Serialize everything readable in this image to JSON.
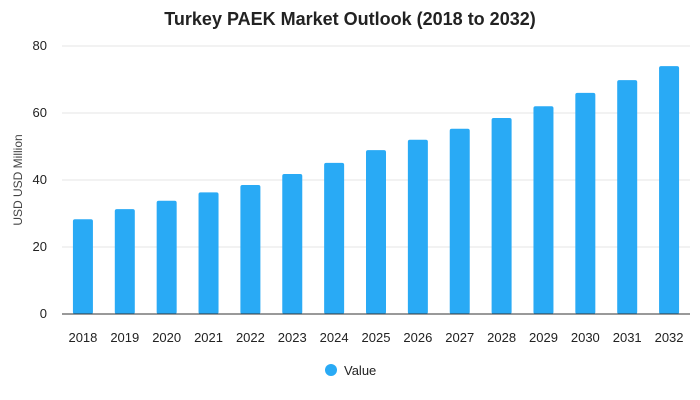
{
  "chart_data": {
    "type": "bar",
    "title": "Turkey PAEK Market Outlook (2018 to 2032)",
    "xlabel": "",
    "ylabel": "USD USD Million",
    "categories": [
      "2018",
      "2019",
      "2020",
      "2021",
      "2022",
      "2023",
      "2024",
      "2025",
      "2026",
      "2027",
      "2028",
      "2029",
      "2030",
      "2031",
      "2032"
    ],
    "series": [
      {
        "name": "Value",
        "color": "#29aaf5",
        "values": [
          28.3,
          31.3,
          33.8,
          36.3,
          38.5,
          41.8,
          45.1,
          48.9,
          52.0,
          55.3,
          58.5,
          62.0,
          66.0,
          69.8,
          74.0
        ]
      }
    ],
    "ylim": [
      0,
      80
    ],
    "yticks": [
      "0",
      "20",
      "40",
      "60",
      "80"
    ],
    "grid": true,
    "legend": "bottom-center"
  }
}
